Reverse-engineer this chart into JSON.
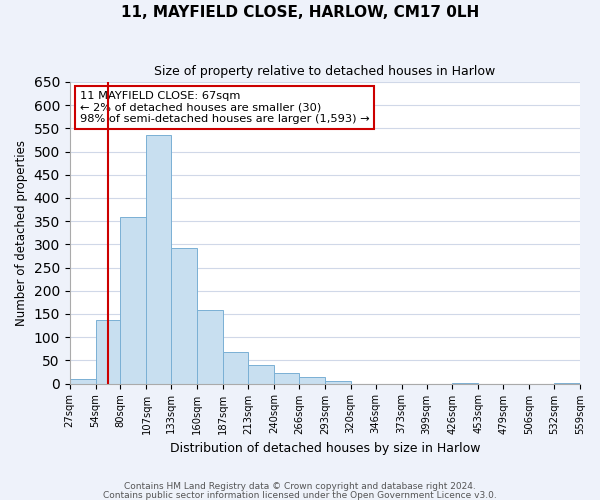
{
  "title": "11, MAYFIELD CLOSE, HARLOW, CM17 0LH",
  "subtitle": "Size of property relative to detached houses in Harlow",
  "xlabel": "Distribution of detached houses by size in Harlow",
  "ylabel": "Number of detached properties",
  "bar_color": "#c8dff0",
  "bar_edge_color": "#7ab0d4",
  "bin_edges": [
    27,
    54,
    80,
    107,
    133,
    160,
    187,
    213,
    240,
    266,
    293,
    320,
    346,
    373,
    399,
    426,
    453,
    479,
    506,
    532,
    559
  ],
  "bar_heights": [
    10,
    137,
    358,
    535,
    292,
    158,
    67,
    40,
    22,
    15,
    5,
    0,
    0,
    0,
    0,
    1,
    0,
    0,
    0,
    1
  ],
  "tick_labels": [
    "27sqm",
    "54sqm",
    "80sqm",
    "107sqm",
    "133sqm",
    "160sqm",
    "187sqm",
    "213sqm",
    "240sqm",
    "266sqm",
    "293sqm",
    "320sqm",
    "346sqm",
    "373sqm",
    "399sqm",
    "426sqm",
    "453sqm",
    "479sqm",
    "506sqm",
    "532sqm",
    "559sqm"
  ],
  "ylim": [
    0,
    650
  ],
  "yticks": [
    0,
    50,
    100,
    150,
    200,
    250,
    300,
    350,
    400,
    450,
    500,
    550,
    600,
    650
  ],
  "vline_x": 67,
  "vline_color": "#cc0000",
  "annotation_title": "11 MAYFIELD CLOSE: 67sqm",
  "annotation_line1": "← 2% of detached houses are smaller (30)",
  "annotation_line2": "98% of semi-detached houses are larger (1,593) →",
  "annotation_box_color": "#ffffff",
  "annotation_box_edge": "#cc0000",
  "footer1": "Contains HM Land Registry data © Crown copyright and database right 2024.",
  "footer2": "Contains public sector information licensed under the Open Government Licence v3.0.",
  "background_color": "#eef2fa",
  "plot_bg_color": "#ffffff",
  "grid_color": "#d0d8e8"
}
